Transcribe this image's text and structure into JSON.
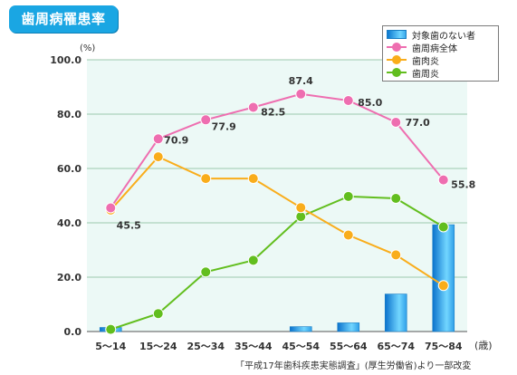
{
  "badge": {
    "title": "歯周病罹患率"
  },
  "colors": {
    "perio_total": "#ee6eb0",
    "gingivitis": "#f9ad1b",
    "periodontitis": "#62be1e",
    "bars": "#1e93e6",
    "plot_bg": "#ecf9f6",
    "grid": "#9cc9ae"
  },
  "chart_data": {
    "type": "bar+line",
    "y_unit": "(%)",
    "x_unit": "(歳)",
    "ylim": [
      0,
      100
    ],
    "yticks": [
      "0.0",
      "20.0",
      "40.0",
      "60.0",
      "80.0",
      "100.0"
    ],
    "grid": true,
    "legend_position": "top-right",
    "categories": [
      "5～14",
      "15～24",
      "25～34",
      "35～44",
      "45～54",
      "55～64",
      "65～74",
      "75～84"
    ],
    "series": [
      {
        "name": "対象歯のない者",
        "kind": "bar",
        "values": [
          1.5,
          null,
          null,
          null,
          1.8,
          3.2,
          13.8,
          39.3
        ],
        "value_labels": []
      },
      {
        "name": "歯周病全体",
        "kind": "line",
        "values": [
          45.5,
          70.9,
          77.9,
          82.5,
          87.4,
          85.0,
          77.0,
          55.8
        ],
        "value_labels": [
          "45.5",
          "70.9",
          "77.9",
          "82.5",
          "87.4",
          "85.0",
          "77.0",
          "55.8"
        ]
      },
      {
        "name": "歯肉炎",
        "kind": "line",
        "values": [
          44.7,
          64.3,
          56.3,
          56.3,
          45.6,
          35.5,
          28.2,
          16.9
        ],
        "value_labels": []
      },
      {
        "name": "歯周炎",
        "kind": "line",
        "values": [
          0.8,
          6.6,
          21.9,
          26.2,
          42.3,
          49.7,
          49.0,
          38.5
        ],
        "value_labels": []
      }
    ],
    "source": "「平成17年歯科疾患実態調査」(厚生労働省)より一部改変"
  }
}
